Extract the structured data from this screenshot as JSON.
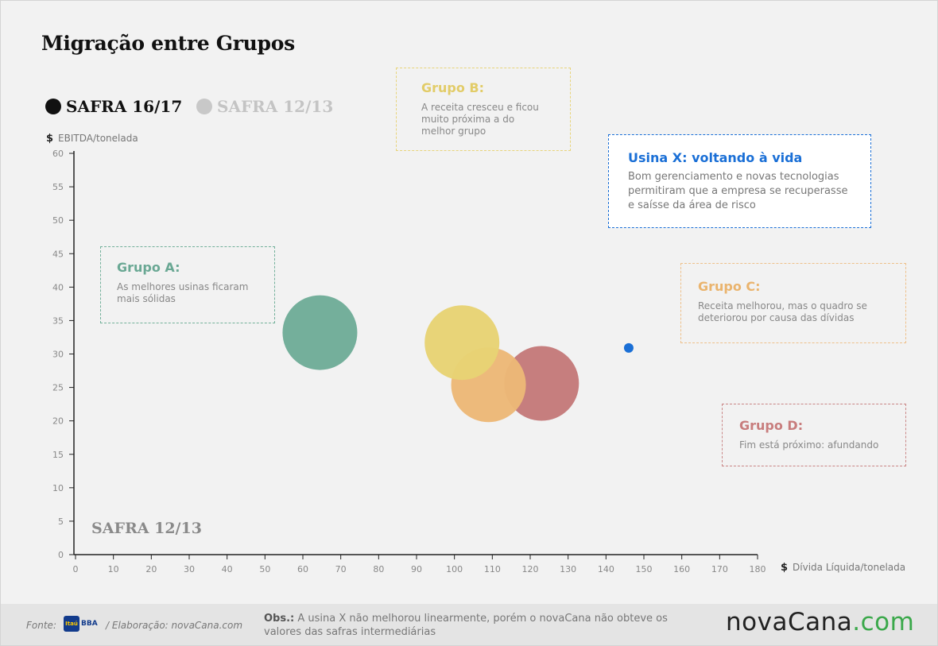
{
  "title": "Migração entre Grupos",
  "legend": [
    {
      "label": "SAFRA 16/17",
      "color": "#111111"
    },
    {
      "label": "SAFRA 12/13",
      "color": "#c8c8c8"
    }
  ],
  "axes": {
    "y_symbol": "$",
    "y_label": "EBITDA/tonelada",
    "x_symbol": "$",
    "x_label": "Dívida Líquida/tonelada"
  },
  "notes": {
    "a": {
      "title": "Grupo A:",
      "body": "As melhores usinas ficaram mais sólidas"
    },
    "b": {
      "title": "Grupo B:",
      "body": "A receita cresceu e ficou muito próxima a do melhor grupo"
    },
    "c": {
      "title": "Grupo C:",
      "body": "Receita melhorou, mas o quadro se deteriorou por causa das dívidas"
    },
    "d": {
      "title": "Grupo D:",
      "body": "Fim está próximo: afundando"
    },
    "x": {
      "title": "Usina X: voltando à vida",
      "body": "Bom gerenciamento e novas tecnologias permitiram que a empresa se recuperasse e saísse da área de risco"
    }
  },
  "watermark": "SAFRA 12/13",
  "footer": {
    "fonte_label": "Fonte:",
    "itau_logo_text": "Itaú",
    "itau_bba_text": "BBA",
    "elaboracao": "/ Elaboração: novaCana.com",
    "obs_label": "Obs.:",
    "obs_text": "A usina X não melhorou linearmente, porém o novaCana não obteve os valores das safras intermediárias",
    "brand_main": "novaCana",
    "brand_suffix": ".com"
  },
  "chart_data": {
    "type": "scatter",
    "title": "Migração entre Grupos",
    "xlabel": "Dívida Líquida/tonelada",
    "ylabel": "EBITDA/tonelada",
    "xlim": [
      0,
      180
    ],
    "ylim": [
      0,
      60
    ],
    "x_ticks": [
      0,
      10,
      20,
      30,
      40,
      50,
      60,
      70,
      80,
      90,
      100,
      110,
      120,
      130,
      140,
      150,
      160,
      170,
      180
    ],
    "y_ticks": [
      0,
      5,
      10,
      15,
      20,
      25,
      30,
      35,
      40,
      45,
      50,
      55,
      60
    ],
    "grid": false,
    "series": [
      {
        "name": "Grupo A",
        "color": "#6fac98",
        "x": 64.5,
        "y": 33.2,
        "size": 1.0
      },
      {
        "name": "Grupo D",
        "color": "#c47a7a",
        "x": 123,
        "y": 25.6,
        "size": 1.0
      },
      {
        "name": "Grupo C",
        "color": "#ecb877",
        "x": 109,
        "y": 25.4,
        "size": 1.0
      },
      {
        "name": "Grupo B",
        "color": "#e7d374",
        "x": 102,
        "y": 31.7,
        "size": 1.0
      },
      {
        "name": "Usina X",
        "color": "#1a6fd6",
        "x": 146,
        "y": 30.9,
        "size": 0.11
      }
    ]
  }
}
